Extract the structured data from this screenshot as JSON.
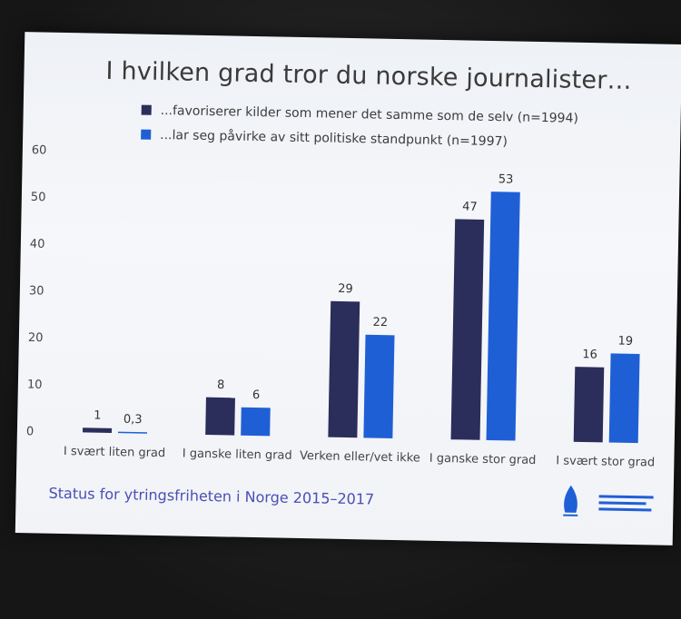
{
  "slide": {
    "title": "I hvilken grad tror du norske journalister…",
    "footer": "Status for ytringsfriheten i Norge 2015–2017",
    "logos": [
      "fritt-ord-logo",
      "institutt-for-samfunnsforskning-logo"
    ]
  },
  "chart_data": {
    "type": "bar",
    "title": "I hvilken grad tror du norske journalister…",
    "categories": [
      "I svært liten grad",
      "I ganske liten grad",
      "Verken eller/vet ikke",
      "I ganske stor grad",
      "I svært stor grad"
    ],
    "series": [
      {
        "name": "...favoriserer kilder som mener det samme som de selv (n=1994)",
        "values": [
          1,
          8,
          29,
          47,
          16
        ],
        "labels": [
          "1",
          "8",
          "29",
          "47",
          "16"
        ],
        "color": "#2b2d5a"
      },
      {
        "name": "...lar seg påvirke av sitt politiske standpunkt (n=1997)",
        "values": [
          0.3,
          6,
          22,
          53,
          19
        ],
        "labels": [
          "0,3",
          "6",
          "22",
          "53",
          "19"
        ],
        "color": "#1f5fd6"
      }
    ],
    "yticks": [
      0,
      10,
      20,
      30,
      40,
      50,
      60
    ],
    "ylim": [
      0,
      60
    ],
    "xlabel": "",
    "ylabel": "",
    "grid": false,
    "legend": "top-left"
  }
}
